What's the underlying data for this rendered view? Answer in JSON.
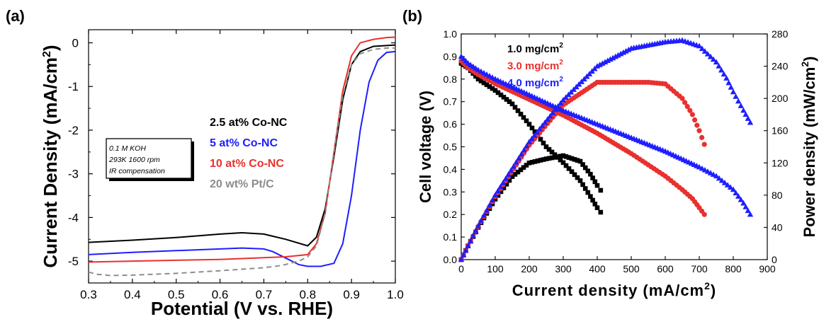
{
  "chart_data": [
    {
      "type": "line",
      "panel_label": "(a)",
      "xlabel": "Potential (V vs. RHE)",
      "ylabel": "Current Density (mA/cm2)",
      "ylabel_main": "Current Density (mA/cm",
      "ylabel_sup": "2",
      "ylabel_close": ")",
      "xlim": [
        0.3,
        1.0
      ],
      "ylim": [
        -5.5,
        0.3
      ],
      "xticks": [
        "0.3",
        "0.4",
        "0.5",
        "0.6",
        "0.7",
        "0.8",
        "0.9",
        "1.0"
      ],
      "yticks": [
        "0",
        "-1",
        "-2",
        "-3",
        "-4",
        "-5"
      ],
      "conditions": [
        "0.1 M KOH",
        "293K 1600 rpm",
        "IR compensation"
      ],
      "series": [
        {
          "name_main": "2.5 at%",
          "name_rest": "Co-NC",
          "color": "#000000",
          "dash": false,
          "x": [
            0.3,
            0.4,
            0.5,
            0.6,
            0.65,
            0.7,
            0.75,
            0.8,
            0.82,
            0.84,
            0.86,
            0.88,
            0.9,
            0.92,
            0.95,
            1.0
          ],
          "y": [
            -4.57,
            -4.52,
            -4.46,
            -4.38,
            -4.35,
            -4.38,
            -4.5,
            -4.65,
            -4.45,
            -3.8,
            -2.6,
            -1.3,
            -0.5,
            -0.2,
            -0.08,
            -0.05
          ]
        },
        {
          "name_main": "5 at%",
          "name_rest": "Co-NC",
          "color": "#1e1eff",
          "dash": false,
          "x": [
            0.3,
            0.4,
            0.5,
            0.6,
            0.65,
            0.7,
            0.72,
            0.75,
            0.78,
            0.8,
            0.83,
            0.86,
            0.88,
            0.9,
            0.92,
            0.94,
            0.96,
            0.98,
            1.0
          ],
          "y": [
            -4.85,
            -4.8,
            -4.76,
            -4.72,
            -4.7,
            -4.72,
            -4.78,
            -4.93,
            -5.08,
            -5.12,
            -5.12,
            -5.05,
            -4.6,
            -3.5,
            -2.0,
            -0.9,
            -0.4,
            -0.22,
            -0.2
          ]
        },
        {
          "name_main": "10 at%",
          "name_rest": "Co-NC",
          "color": "#e8312f",
          "dash": false,
          "x": [
            0.3,
            0.4,
            0.5,
            0.6,
            0.7,
            0.75,
            0.8,
            0.82,
            0.84,
            0.86,
            0.88,
            0.9,
            0.92,
            0.95,
            0.98,
            1.0
          ],
          "y": [
            -5.02,
            -5.0,
            -4.98,
            -4.96,
            -4.92,
            -4.9,
            -4.85,
            -4.6,
            -3.9,
            -2.5,
            -1.1,
            -0.3,
            0.0,
            0.08,
            0.12,
            0.13
          ]
        },
        {
          "name_main": "20 wt%",
          "name_rest": "Pt/C",
          "color": "#8c8c8c",
          "dash": true,
          "x": [
            0.3,
            0.32,
            0.35,
            0.4,
            0.5,
            0.6,
            0.7,
            0.74,
            0.78,
            0.8,
            0.82,
            0.84,
            0.86,
            0.88,
            0.9,
            0.92,
            0.95,
            0.98,
            1.0
          ],
          "y": [
            -5.25,
            -5.3,
            -5.33,
            -5.32,
            -5.28,
            -5.22,
            -5.15,
            -5.1,
            -5.0,
            -4.9,
            -4.65,
            -3.9,
            -2.5,
            -1.2,
            -0.5,
            -0.25,
            -0.15,
            -0.12,
            -0.12
          ]
        }
      ]
    },
    {
      "type": "scatter",
      "panel_label": "(b)",
      "xlabel_main": "Current density (mA/cm",
      "xlabel_sup": "2",
      "xlabel_close": ")",
      "ylabel_left": "Cell voltage (V)",
      "ylabel_right_main": "Power density (mW/cm",
      "ylabel_right_sup": "2",
      "ylabel_right_close": ")",
      "xlim": [
        0,
        900
      ],
      "ylim_left": [
        0,
        1.0
      ],
      "ylim_right": [
        0,
        280
      ],
      "xticks": [
        "0",
        "100",
        "200",
        "300",
        "400",
        "500",
        "600",
        "700",
        "800",
        "900"
      ],
      "yticks_left": [
        "0.0",
        "0.1",
        "0.2",
        "0.3",
        "0.4",
        "0.5",
        "0.6",
        "0.7",
        "0.8",
        "0.9",
        "1.0"
      ],
      "yticks_right": [
        "0",
        "40",
        "80",
        "120",
        "160",
        "200",
        "240",
        "280"
      ],
      "series": [
        {
          "name_main": "1.0 mg/cm",
          "name_sup": "2",
          "color": "#000000",
          "marker": "square",
          "voltage": {
            "x": [
              0,
              20,
              50,
              100,
              150,
              200,
              250,
              300,
              350,
              380,
              400,
              410
            ],
            "y": [
              0.87,
              0.85,
              0.8,
              0.75,
              0.69,
              0.6,
              0.5,
              0.43,
              0.35,
              0.28,
              0.23,
              0.21
            ]
          },
          "power": {
            "x": [
              0,
              20,
              50,
              100,
              150,
              200,
              250,
              300,
              350,
              380,
              400,
              410
            ],
            "y": [
              0,
              17,
              40,
              75,
              103,
              120,
              125,
              129,
              122,
              106,
              92,
              86
            ]
          }
        },
        {
          "name_main": "3.0 mg/cm",
          "name_sup": "2",
          "color": "#e8312f",
          "marker": "circle",
          "voltage": {
            "x": [
              0,
              20,
              50,
              100,
              200,
              300,
              400,
              500,
              550,
              600,
              650,
              680,
              700,
              715
            ],
            "y": [
              0.88,
              0.85,
              0.82,
              0.78,
              0.71,
              0.64,
              0.56,
              0.47,
              0.42,
              0.37,
              0.31,
              0.27,
              0.23,
              0.2
            ]
          },
          "power": {
            "x": [
              0,
              20,
              50,
              100,
              200,
              300,
              400,
              500,
              550,
              600,
              650,
              680,
              700,
              715
            ],
            "y": [
              0,
              17,
              41,
              78,
              142,
              192,
              220,
              220,
              220,
              218,
              200,
              180,
              160,
              143
            ]
          }
        },
        {
          "name_main": "4.0 mg/cm",
          "name_sup": "2",
          "color": "#1e1eff",
          "marker": "triangle",
          "voltage": {
            "x": [
              0,
              20,
              50,
              100,
              200,
              300,
              400,
              500,
              600,
              700,
              750,
              800,
              830,
              850
            ],
            "y": [
              0.9,
              0.87,
              0.84,
              0.8,
              0.73,
              0.66,
              0.6,
              0.54,
              0.48,
              0.41,
              0.37,
              0.31,
              0.25,
              0.2
            ]
          },
          "power": {
            "x": [
              0,
              20,
              50,
              100,
              200,
              300,
              400,
              500,
              600,
              650,
              700,
              750,
              780,
              800,
              830,
              850
            ],
            "y": [
              0,
              17,
              42,
              80,
              146,
              198,
              240,
              262,
              270,
              272,
              265,
              245,
              225,
              208,
              185,
              170
            ]
          }
        }
      ]
    }
  ]
}
